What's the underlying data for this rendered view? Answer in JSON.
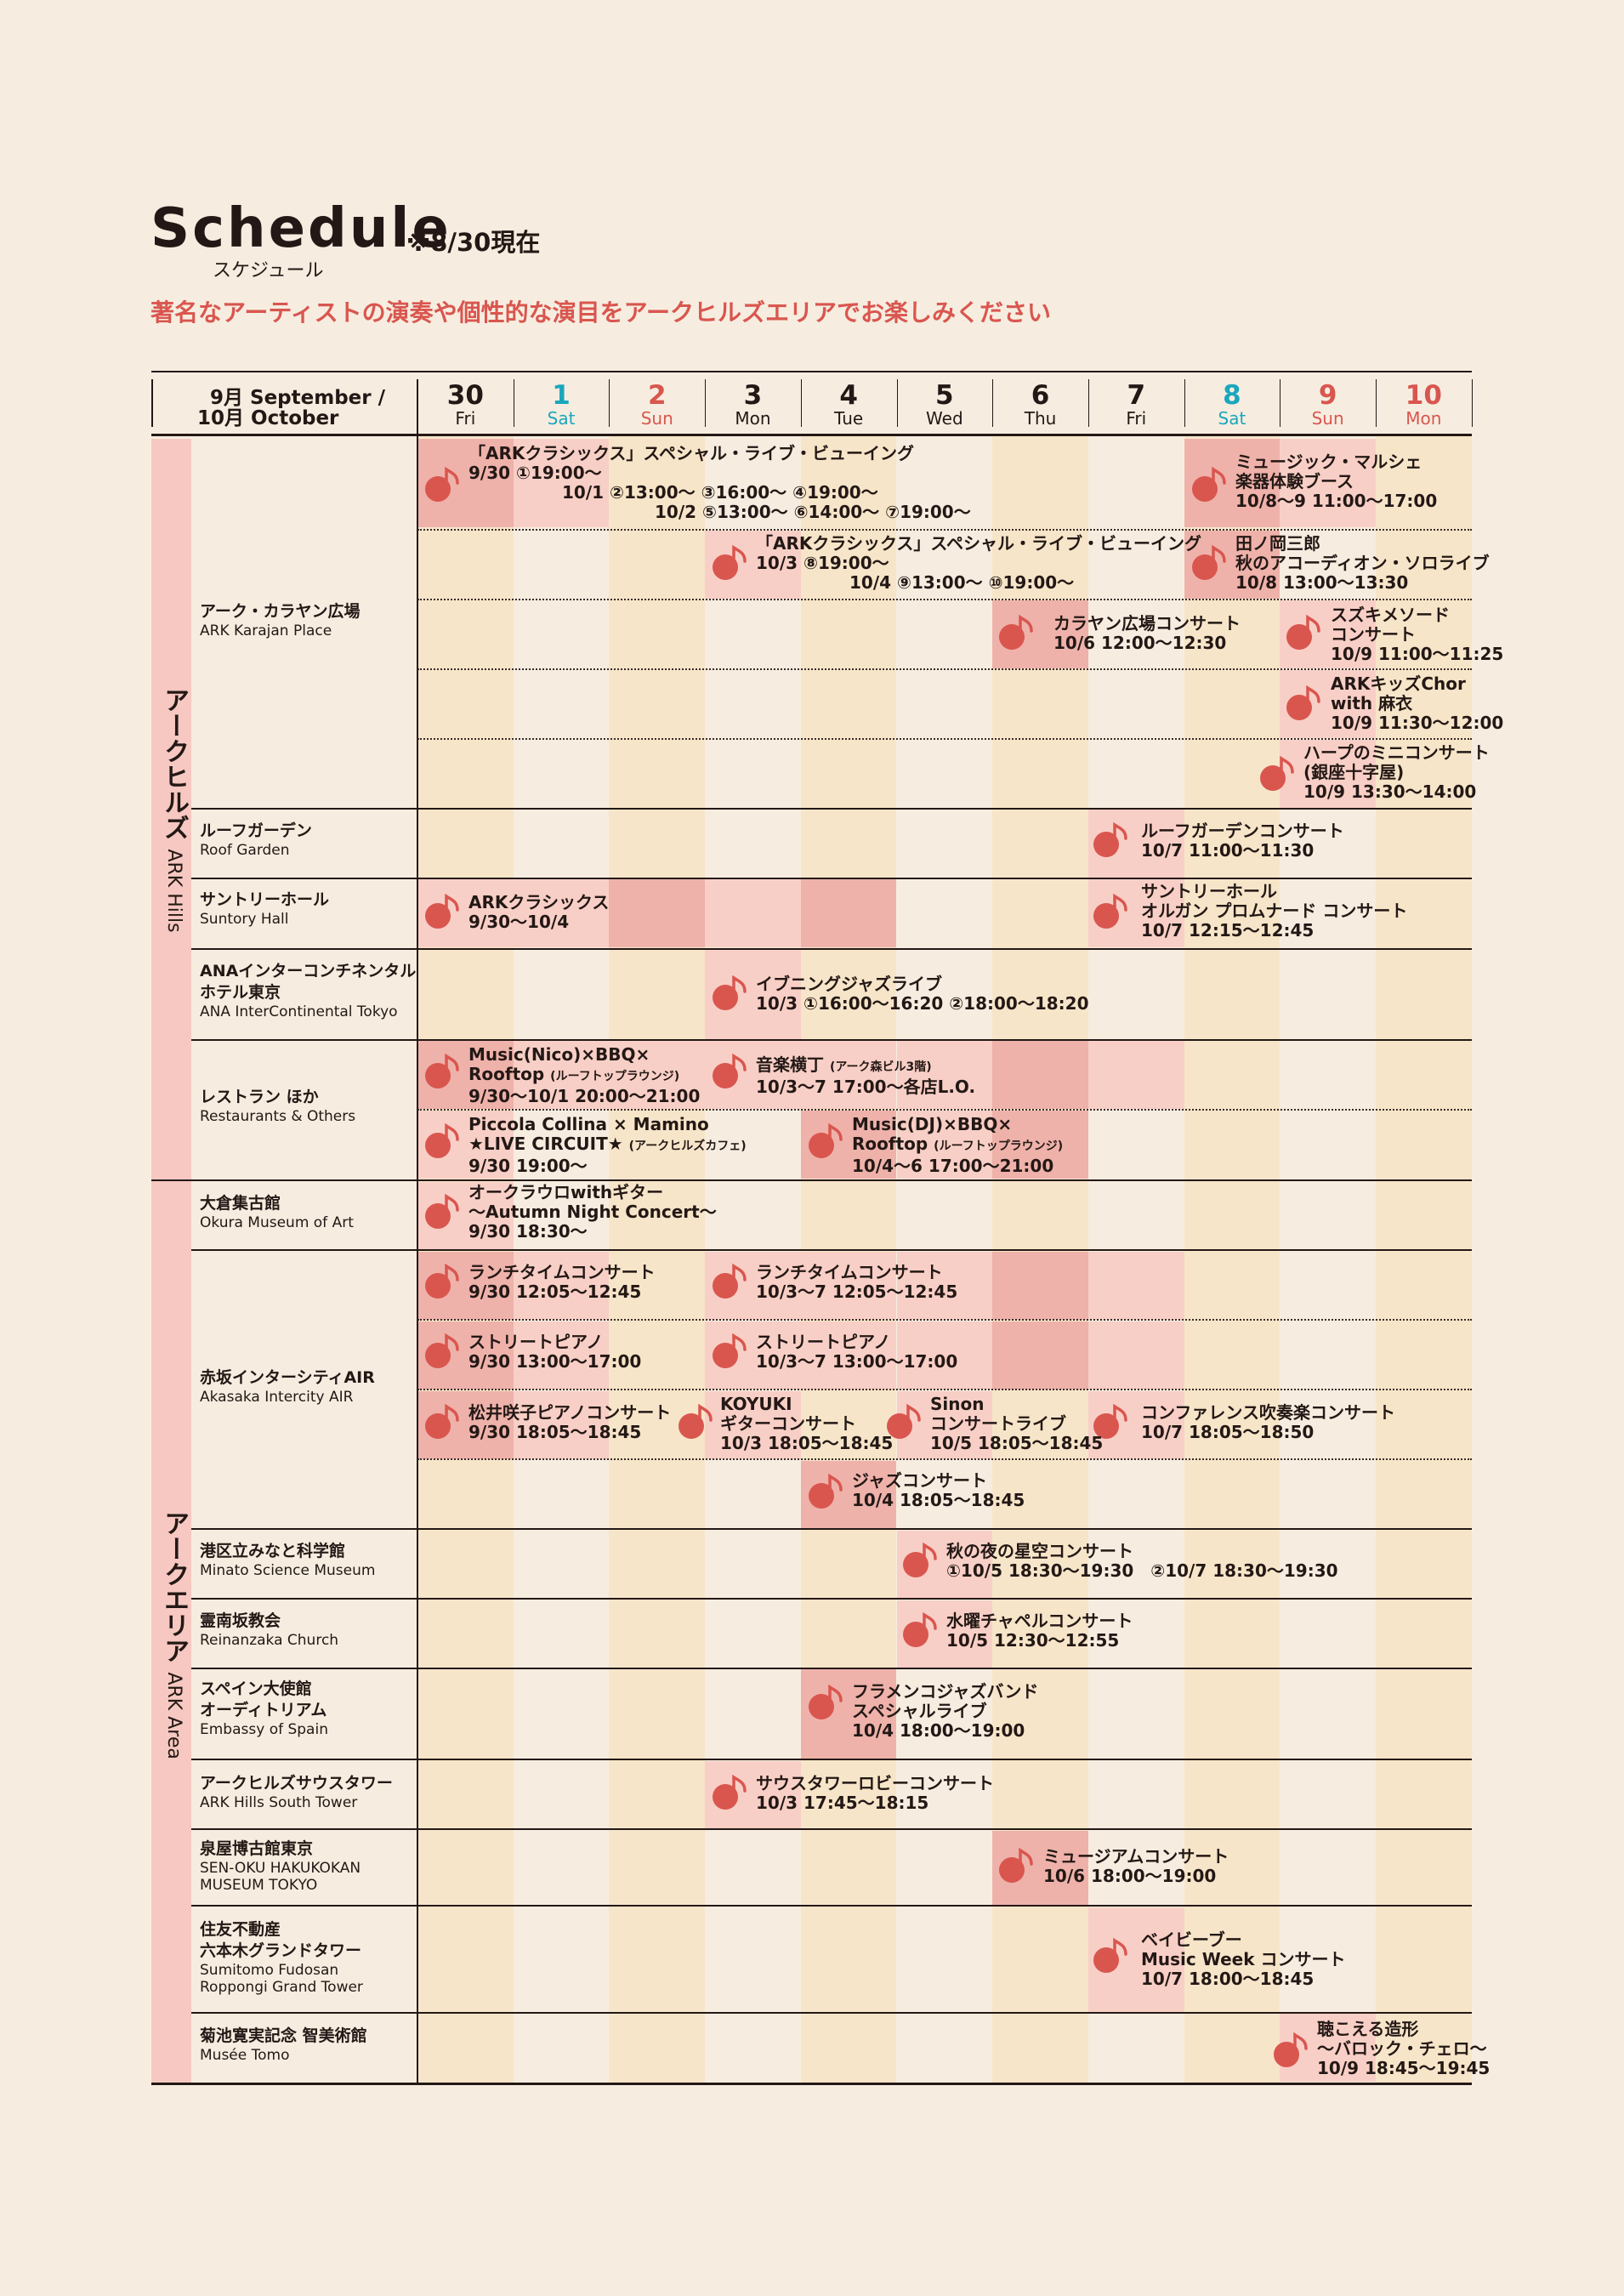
{
  "header": {
    "title": "Schedule",
    "title_kana": "スケジュール",
    "as_of": "※8/30現在",
    "tagline": "著名なアーティストの演奏や個性的な演目をアークヒルズエリアでお楽しみください"
  },
  "colors": {
    "background": "#f6ede0",
    "band": "#f7e5c9",
    "highlight": "#f8cfc6",
    "highlight_dark": "#eeb2aa",
    "area_bar": "#f6c8c1",
    "accent_red": "#d9564f",
    "saturday": "#1aa7bd",
    "sunday": "#d9564f"
  },
  "month_label": {
    "line1": "9月 September /",
    "line2": "10月 October"
  },
  "days": [
    {
      "num": "30",
      "name": "Fri"
    },
    {
      "num": "1",
      "name": "Sat"
    },
    {
      "num": "2",
      "name": "Sun"
    },
    {
      "num": "3",
      "name": "Mon"
    },
    {
      "num": "4",
      "name": "Tue"
    },
    {
      "num": "5",
      "name": "Wed"
    },
    {
      "num": "6",
      "name": "Thu"
    },
    {
      "num": "7",
      "name": "Fri"
    },
    {
      "num": "8",
      "name": "Sat"
    },
    {
      "num": "9",
      "name": "Sun"
    },
    {
      "num": "10",
      "name": "Mon"
    }
  ],
  "areas": {
    "ark_hills": {
      "jp": "アークヒルズ",
      "en": "ARK Hills"
    },
    "ark_area": {
      "jp": "アークエリア",
      "en": "ARK Area"
    }
  },
  "venues": {
    "karajan": {
      "jp": "アーク・カラヤン広場",
      "en": "ARK Karajan Place"
    },
    "roof": {
      "jp": "ルーフガーデン",
      "en": "Roof Garden"
    },
    "suntory": {
      "jp": "サントリーホール",
      "en": "Suntory Hall"
    },
    "ana": {
      "jp1": "ANAインターコンチネンタル",
      "jp2": "ホテル東京",
      "en": "ANA InterContinental Tokyo"
    },
    "rest": {
      "jp": "レストラン ほか",
      "en": "Restaurants & Others"
    },
    "okura": {
      "jp": "大倉集古館",
      "en": "Okura Museum of Art"
    },
    "akasaka": {
      "jp": "赤坂インターシティAIR",
      "en": "Akasaka Intercity AIR"
    },
    "minato": {
      "jp": "港区立みなと科学館",
      "en": "Minato Science Museum"
    },
    "reinan": {
      "jp": "霊南坂教会",
      "en": "Reinanzaka Church"
    },
    "spain": {
      "jp1": "スペイン大使館",
      "jp2": "オーディトリアム",
      "en": "Embassy of Spain"
    },
    "south": {
      "jp": "アークヒルズサウスタワー",
      "en": "ARK Hills South Tower"
    },
    "senoku": {
      "jp": "泉屋博古館東京",
      "en1": "SEN-OKU HAKUKOKAN",
      "en2": "MUSEUM TOKYO"
    },
    "sumitomo": {
      "jp1": "住友不動産",
      "jp2": "六本木グランドタワー",
      "en1": "Sumitomo Fudosan",
      "en2": "Roppongi Grand Tower"
    },
    "tomo": {
      "jp": "菊池寛実記念 智美術館",
      "en": "Musée Tomo"
    }
  },
  "events": {
    "e1": {
      "title": "「ARKクラシックス」スペシャル・ライブ・ビューイング",
      "l2": "9/30 ①19:00〜",
      "l3": "10/1 ②13:00〜 ③16:00〜 ④19:00〜",
      "l4": "10/2 ⑤13:00〜 ⑥14:00〜 ⑦19:00〜"
    },
    "e2": {
      "title": "「ARKクラシックス」スペシャル・ライブ・ビューイング",
      "l2": "10/3 ⑧19:00〜",
      "l3": "10/4 ⑨13:00〜 ⑩19:00〜"
    },
    "e3": {
      "l1": "ミュージック・マルシェ",
      "l2": "楽器体験ブース",
      "l3": "10/8〜9 11:00〜17:00"
    },
    "e4": {
      "l1": "田ノ岡三郎",
      "l2": "秋のアコーディオン・ソロライブ",
      "l3": "10/8 13:00〜13:30"
    },
    "e5": {
      "l1": "カラヤン広場コンサート",
      "l2": "10/6 12:00〜12:30"
    },
    "e6": {
      "l1": "スズキメソード",
      "l2": "コンサート",
      "l3": "10/9 11:00〜11:25"
    },
    "e7": {
      "l1": "ARKキッズChor",
      "l2": "with 麻衣",
      "l3": "10/9 11:30〜12:00"
    },
    "e8": {
      "l1": "ハープのミニコンサート",
      "l2": "(銀座十字屋)",
      "l3": "10/9 13:30〜14:00"
    },
    "e9": {
      "l1": "ルーフガーデンコンサート",
      "l2": "10/7 11:00〜11:30"
    },
    "e10": {
      "l1": "ARKクラシックス",
      "l2": "9/30〜10/4"
    },
    "e11": {
      "l1": "サントリーホール",
      "l2": "オルガン プロムナード コンサート",
      "l3": "10/7 12:15〜12:45"
    },
    "e12": {
      "l1": "イブニングジャズライブ",
      "l2": "10/3 ①16:00〜16:20 ②18:00〜18:20"
    },
    "e13": {
      "l1": "Music(Nico)×BBQ×",
      "l2": "Rooftop",
      "l2s": "(ルーフトップラウンジ)",
      "l3": "9/30〜10/1 20:00〜21:00"
    },
    "e14": {
      "l1": "音楽横丁",
      "l1s": "(アーク森ビル3階)",
      "l2": "10/3〜7 17:00〜各店L.O."
    },
    "e15": {
      "l1": "Piccola Collina × Mamino",
      "l2": "★LIVE CIRCUIT★",
      "l2s": "(アークヒルズカフェ)",
      "l3": "9/30 19:00〜"
    },
    "e16": {
      "l1": "Music(DJ)×BBQ×",
      "l2": "Rooftop",
      "l2s": "(ルーフトップラウンジ)",
      "l3": "10/4〜6 17:00〜21:00"
    },
    "e17": {
      "l1": "オークラウロwithギター",
      "l2": "〜Autumn Night Concert〜",
      "l3": "9/30 18:30〜"
    },
    "e18": {
      "l1": "ランチタイムコンサート",
      "l2": "9/30 12:05〜12:45"
    },
    "e19": {
      "l1": "ランチタイムコンサート",
      "l2": "10/3〜7 12:05〜12:45"
    },
    "e20": {
      "l1": "ストリートピアノ",
      "l2": "9/30 13:00〜17:00"
    },
    "e21": {
      "l1": "ストリートピアノ",
      "l2": "10/3〜7 13:00〜17:00"
    },
    "e22": {
      "l1": "松井咲子ピアノコンサート",
      "l2": "9/30 18:05〜18:45"
    },
    "e23": {
      "l1": "KOYUKI",
      "l2": "ギターコンサート",
      "l3": "10/3 18:05〜18:45"
    },
    "e24": {
      "l1": "Sinon",
      "l2": "コンサートライブ",
      "l3": "10/5 18:05〜18:45"
    },
    "e25": {
      "l1": "コンファレンス吹奏楽コンサート",
      "l2": "10/7 18:05〜18:50"
    },
    "e26": {
      "l1": "ジャズコンサート",
      "l2": "10/4 18:05〜18:45"
    },
    "e27": {
      "l1": "秋の夜の星空コンサート",
      "l2": "①10/5 18:30〜19:30　②10/7 18:30〜19:30"
    },
    "e28": {
      "l1": "水曜チャペルコンサート",
      "l2": "10/5 12:30〜12:55"
    },
    "e29": {
      "l1": "フラメンコジャズバンド",
      "l2": "スペシャルライブ",
      "l3": "10/4 18:00〜19:00"
    },
    "e30": {
      "l1": "サウスタワーロビーコンサート",
      "l2": "10/3 17:45〜18:15"
    },
    "e31": {
      "l1": "ミュージアムコンサート",
      "l2": "10/6 18:00〜19:00"
    },
    "e32": {
      "l1": "ベイビーブー",
      "l2": "Music Week コンサート",
      "l3": "10/7 18:00〜18:45"
    },
    "e33": {
      "l1": "聴こえる造形",
      "l2": "〜バロック・チェロ〜",
      "l3": "10/9 18:45〜19:45"
    }
  }
}
